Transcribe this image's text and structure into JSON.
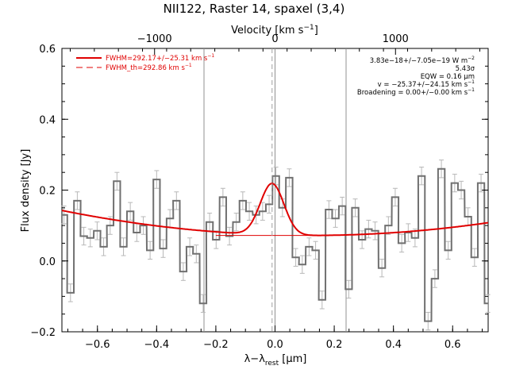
{
  "chart_data": {
    "type": "line",
    "title": "NII122, Raster 14, spaxel (3,4)",
    "xlabel": "λ−λ_rest [μm]",
    "xlabel_main": "λ−λ",
    "xlabel_sub": "rest",
    "xlabel_unit": " [μm]",
    "ylabel": "Flux density [Jy]",
    "top_axis_label": "Velocity [km s⁻¹]",
    "top_axis_label_main": "Velocity [km s",
    "top_axis_label_sup": "−1",
    "top_axis_label_end": "]",
    "xlim": [
      -0.72,
      0.72
    ],
    "ylim": [
      -0.2,
      0.6
    ],
    "x_ticks": [
      -0.6,
      -0.4,
      -0.2,
      0.0,
      0.2,
      0.4,
      0.6
    ],
    "x_tick_labels": [
      "−0.6",
      "−0.4",
      "−0.2",
      "0.0",
      "0.2",
      "0.4",
      "0.6"
    ],
    "y_ticks": [
      -0.2,
      0.0,
      0.2,
      0.4,
      0.6
    ],
    "y_tick_labels": [
      "−0.2",
      "0.0",
      "0.2",
      "0.4",
      "0.6"
    ],
    "top_ticks_velocity": [
      -1000,
      0,
      1000
    ],
    "top_tick_labels": [
      "−1000",
      "0",
      "1000"
    ],
    "velocity_um_per_kms": 0.000407,
    "vertical_lines_x": [
      -0.24,
      0.0,
      0.24
    ],
    "rest_line_x": -0.01,
    "grid": false,
    "legend_position": "top-left",
    "colors": {
      "data": "#707070",
      "error": "#b8b8b8",
      "fit": "#e00000",
      "axes": "#000000",
      "vline": "#909090"
    },
    "series": [
      {
        "name": "spectrum",
        "style": "histogram-step",
        "bin_width": 0.0224,
        "x": [
          -0.713,
          -0.691,
          -0.668,
          -0.646,
          -0.624,
          -0.601,
          -0.579,
          -0.557,
          -0.534,
          -0.512,
          -0.489,
          -0.467,
          -0.445,
          -0.422,
          -0.4,
          -0.378,
          -0.355,
          -0.333,
          -0.31,
          -0.288,
          -0.266,
          -0.243,
          -0.221,
          -0.199,
          -0.176,
          -0.154,
          -0.131,
          -0.109,
          -0.087,
          -0.064,
          -0.042,
          -0.02,
          0.003,
          0.025,
          0.048,
          0.07,
          0.092,
          0.115,
          0.137,
          0.159,
          0.182,
          0.204,
          0.227,
          0.249,
          0.271,
          0.294,
          0.316,
          0.338,
          0.361,
          0.383,
          0.406,
          0.428,
          0.45,
          0.473,
          0.495,
          0.517,
          0.54,
          0.562,
          0.585,
          0.607,
          0.629,
          0.652,
          0.674,
          0.696,
          0.719
        ],
        "y": [
          0.13,
          -0.09,
          0.17,
          0.07,
          0.065,
          0.085,
          0.04,
          0.1,
          0.225,
          0.04,
          0.14,
          0.08,
          0.1,
          0.03,
          0.23,
          0.035,
          0.12,
          0.17,
          -0.03,
          0.04,
          0.02,
          -0.12,
          0.11,
          0.06,
          0.18,
          0.07,
          0.11,
          0.17,
          0.14,
          0.13,
          0.14,
          0.16,
          0.24,
          0.15,
          0.235,
          0.01,
          -0.01,
          0.04,
          0.03,
          -0.11,
          0.145,
          0.12,
          0.155,
          -0.08,
          0.15,
          0.06,
          0.09,
          0.085,
          -0.02,
          0.1,
          0.18,
          0.05,
          0.08,
          0.065,
          0.24,
          -0.17,
          -0.05,
          0.26,
          0.03,
          0.22,
          0.2,
          0.125,
          0.01,
          0.22,
          -0.12
        ],
        "err": [
          0.025,
          0.025,
          0.025,
          0.025,
          0.025,
          0.025,
          0.025,
          0.025,
          0.025,
          0.025,
          0.025,
          0.025,
          0.025,
          0.025,
          0.025,
          0.025,
          0.025,
          0.025,
          0.025,
          0.025,
          0.025,
          0.025,
          0.025,
          0.025,
          0.025,
          0.025,
          0.025,
          0.025,
          0.025,
          0.025,
          0.025,
          0.025,
          0.025,
          0.025,
          0.025,
          0.025,
          0.025,
          0.025,
          0.025,
          0.025,
          0.025,
          0.025,
          0.025,
          0.025,
          0.025,
          0.025,
          0.025,
          0.025,
          0.025,
          0.025,
          0.025,
          0.025,
          0.025,
          0.025,
          0.025,
          0.025,
          0.025,
          0.025,
          0.025,
          0.025,
          0.025,
          0.025,
          0.025,
          0.025,
          0.025
        ]
      },
      {
        "name": "FWHM=292.17+/−25.31 km s⁻¹",
        "style": "fit-line",
        "center": -0.01,
        "amplitude": 0.145,
        "sigma": 0.04,
        "baseline": {
          "type": "quadratic",
          "center": 0.12,
          "base": 0.072,
          "coef": 0.1
        }
      },
      {
        "name": "FWHM_th=292.86 km s⁻¹",
        "style": "dashed",
        "center": -0.01
      }
    ],
    "legend": [
      {
        "label": "FWHM=292.17+/−25.31 km s⁻¹",
        "label_main": "FWHM=292.17+/−25.31 km s",
        "label_sup": "−1",
        "style": "solid"
      },
      {
        "label": "FWHM_th=292.86 km s⁻¹",
        "label_main": "FWHM_th=292.86 km s",
        "label_sup": "−1",
        "style": "dashed"
      }
    ],
    "annotations": [
      {
        "main": "3.83e−18+/−7.05e−19 W m",
        "sup": "−2"
      },
      {
        "main": "5.43σ",
        "sup": ""
      },
      {
        "main": "EQW = 0.16 μm",
        "sup": ""
      },
      {
        "main": "v = −25.37+/−24.15 km s",
        "sup": "−1"
      },
      {
        "main": "Broadening = 0.00+/−0.00 km s",
        "sup": "−1"
      }
    ]
  }
}
